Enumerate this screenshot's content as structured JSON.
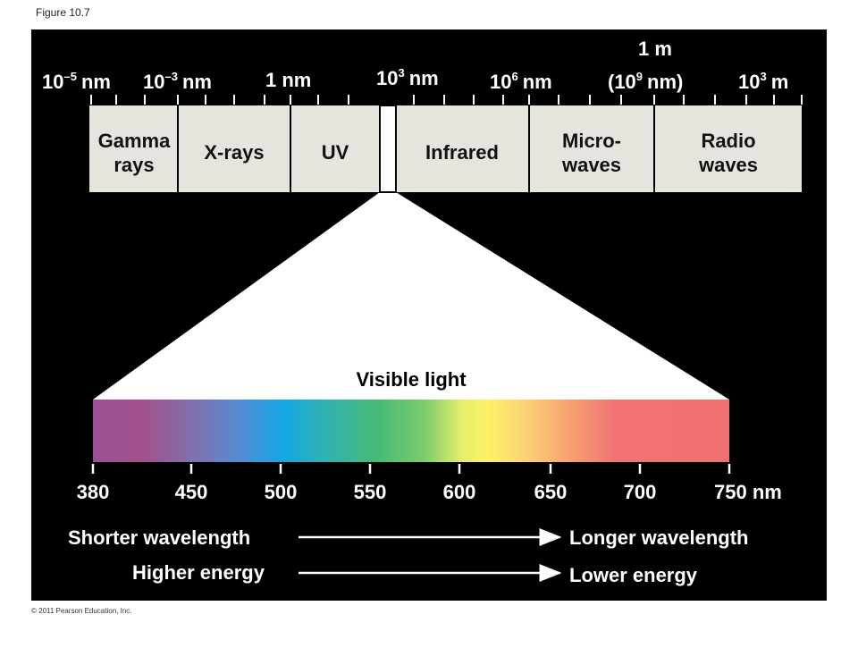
{
  "figure_label": "Figure 10.7",
  "top_scale": [
    {
      "base": "10",
      "exp": "–5",
      "unit": "nm"
    },
    {
      "base": "10",
      "exp": "–3",
      "unit": "nm"
    },
    {
      "text": "1 nm"
    },
    {
      "base": "10",
      "exp": "3",
      "unit": "nm"
    },
    {
      "base": "10",
      "exp": "6",
      "unit": "nm"
    },
    {
      "line1": "1 m",
      "base": "(10",
      "exp": "9",
      "unit": "nm)"
    },
    {
      "base": "10",
      "exp": "3",
      "unit": "m"
    }
  ],
  "bands": [
    {
      "lines": [
        "Gamma",
        "rays"
      ]
    },
    {
      "lines": [
        "X-rays"
      ]
    },
    {
      "lines": [
        "UV"
      ]
    },
    {
      "lines": [
        "Infrared"
      ]
    },
    {
      "lines": [
        "Micro-",
        "waves"
      ]
    },
    {
      "lines": [
        "Radio",
        "waves"
      ]
    }
  ],
  "visible_title": "Visible light",
  "visible_ticks": [
    "380",
    "450",
    "500",
    "550",
    "600",
    "650",
    "700",
    "750 nm"
  ],
  "arrows": [
    {
      "from": "Shorter wavelength",
      "to": "Longer wavelength"
    },
    {
      "from": "Higher energy",
      "to": "Lower energy"
    }
  ],
  "copyright": "© 2011 Pearson Education, Inc."
}
